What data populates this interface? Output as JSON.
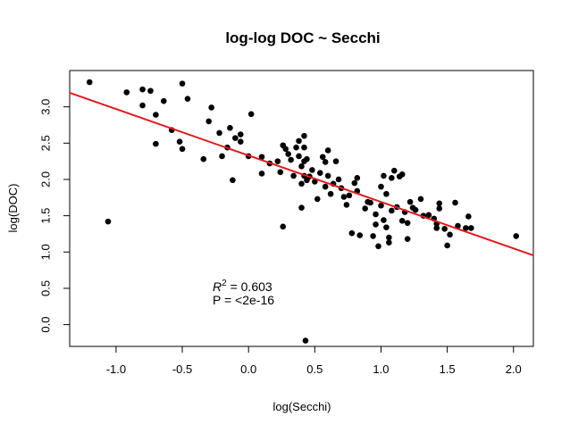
{
  "chart_data": {
    "type": "scatter",
    "title": "log-log DOC ~ Secchi",
    "xlabel": "log(Secchi)",
    "ylabel": "log(DOC)",
    "xlim": [
      -1.35,
      2.15
    ],
    "ylim": [
      -0.3,
      3.5
    ],
    "x_ticks": [
      -1.0,
      -0.5,
      0.0,
      0.5,
      1.0,
      1.5,
      2.0
    ],
    "x_tick_labels": [
      "-1.0",
      "-0.5",
      "0.0",
      "0.5",
      "1.0",
      "1.5",
      "2.0"
    ],
    "y_ticks": [
      0.0,
      0.5,
      1.0,
      1.5,
      2.0,
      2.5,
      3.0
    ],
    "y_tick_labels": [
      "0.0",
      "0.5",
      "1.0",
      "1.5",
      "2.0",
      "2.5",
      "3.0"
    ],
    "grid": false,
    "point_color": "#000000",
    "line_color": "#e31a1c",
    "regression_line": {
      "intercept": 2.33,
      "slope": -0.64
    },
    "annotation": {
      "r2_prefix": "R",
      "r2_sup": "2",
      "r2_value": " = 0.603",
      "p_value": "P = <2e-16"
    },
    "points": [
      {
        "x": -1.2,
        "y": 3.34
      },
      {
        "x": -1.06,
        "y": 1.42
      },
      {
        "x": -0.92,
        "y": 3.2
      },
      {
        "x": -0.8,
        "y": 3.24
      },
      {
        "x": -0.8,
        "y": 3.02
      },
      {
        "x": -0.74,
        "y": 3.22
      },
      {
        "x": -0.7,
        "y": 2.89
      },
      {
        "x": -0.7,
        "y": 2.49
      },
      {
        "x": -0.64,
        "y": 3.08
      },
      {
        "x": -0.58,
        "y": 2.68
      },
      {
        "x": -0.52,
        "y": 2.52
      },
      {
        "x": -0.5,
        "y": 3.32
      },
      {
        "x": -0.5,
        "y": 2.42
      },
      {
        "x": -0.46,
        "y": 3.11
      },
      {
        "x": -0.34,
        "y": 2.28
      },
      {
        "x": -0.3,
        "y": 2.8
      },
      {
        "x": -0.28,
        "y": 2.99
      },
      {
        "x": -0.22,
        "y": 2.64
      },
      {
        "x": -0.2,
        "y": 2.32
      },
      {
        "x": -0.16,
        "y": 2.44
      },
      {
        "x": -0.14,
        "y": 2.71
      },
      {
        "x": -0.12,
        "y": 1.99
      },
      {
        "x": -0.1,
        "y": 2.57
      },
      {
        "x": -0.06,
        "y": 2.52
      },
      {
        "x": -0.06,
        "y": 2.62
      },
      {
        "x": 0.0,
        "y": 2.32
      },
      {
        "x": 0.02,
        "y": 2.9
      },
      {
        "x": 0.1,
        "y": 2.08
      },
      {
        "x": 0.1,
        "y": 2.31
      },
      {
        "x": 0.16,
        "y": 2.22
      },
      {
        "x": 0.22,
        "y": 2.25
      },
      {
        "x": 0.24,
        "y": 2.1
      },
      {
        "x": 0.26,
        "y": 2.47
      },
      {
        "x": 0.28,
        "y": 2.42
      },
      {
        "x": 0.26,
        "y": 1.35
      },
      {
        "x": 0.3,
        "y": 2.35
      },
      {
        "x": 0.32,
        "y": 2.27
      },
      {
        "x": 0.34,
        "y": 2.05
      },
      {
        "x": 0.36,
        "y": 2.44
      },
      {
        "x": 0.38,
        "y": 2.53
      },
      {
        "x": 0.38,
        "y": 2.32
      },
      {
        "x": 0.4,
        "y": 2.18
      },
      {
        "x": 0.4,
        "y": 1.94
      },
      {
        "x": 0.42,
        "y": 2.6
      },
      {
        "x": 0.42,
        "y": 2.44
      },
      {
        "x": 0.42,
        "y": 2.25
      },
      {
        "x": 0.42,
        "y": 2.05
      },
      {
        "x": 0.44,
        "y": 1.99
      },
      {
        "x": 0.4,
        "y": 1.61
      },
      {
        "x": 0.44,
        "y": 2.28
      },
      {
        "x": 0.46,
        "y": 2.04
      },
      {
        "x": 0.48,
        "y": 2.13
      },
      {
        "x": 0.5,
        "y": 1.97
      },
      {
        "x": 0.52,
        "y": 1.73
      },
      {
        "x": 0.54,
        "y": 2.09
      },
      {
        "x": 0.56,
        "y": 2.31
      },
      {
        "x": 0.58,
        "y": 2.24
      },
      {
        "x": 0.58,
        "y": 1.9
      },
      {
        "x": 0.6,
        "y": 2.4
      },
      {
        "x": 0.6,
        "y": 2.05
      },
      {
        "x": 0.62,
        "y": 1.8
      },
      {
        "x": 0.64,
        "y": 1.94
      },
      {
        "x": 0.66,
        "y": 2.25
      },
      {
        "x": 0.68,
        "y": 2.0
      },
      {
        "x": 0.7,
        "y": 1.88
      },
      {
        "x": 0.72,
        "y": 1.76
      },
      {
        "x": 0.74,
        "y": 1.65
      },
      {
        "x": 0.76,
        "y": 1.78
      },
      {
        "x": 0.78,
        "y": 1.26
      },
      {
        "x": 0.8,
        "y": 1.95
      },
      {
        "x": 0.82,
        "y": 2.02
      },
      {
        "x": 0.82,
        "y": 1.84
      },
      {
        "x": 0.84,
        "y": 1.23
      },
      {
        "x": 0.88,
        "y": 1.6
      },
      {
        "x": 0.9,
        "y": 1.69
      },
      {
        "x": 0.92,
        "y": 1.68
      },
      {
        "x": 0.94,
        "y": 1.22
      },
      {
        "x": 0.96,
        "y": 1.38
      },
      {
        "x": 0.96,
        "y": 1.52
      },
      {
        "x": 0.98,
        "y": 1.08
      },
      {
        "x": 1.0,
        "y": 1.9
      },
      {
        "x": 1.0,
        "y": 1.64
      },
      {
        "x": 1.02,
        "y": 1.44
      },
      {
        "x": 1.02,
        "y": 2.05
      },
      {
        "x": 1.04,
        "y": 1.8
      },
      {
        "x": 1.04,
        "y": 1.34
      },
      {
        "x": 1.06,
        "y": 1.2
      },
      {
        "x": 1.06,
        "y": 1.13
      },
      {
        "x": 1.08,
        "y": 2.02
      },
      {
        "x": 1.08,
        "y": 1.57
      },
      {
        "x": 1.1,
        "y": 2.12
      },
      {
        "x": 1.12,
        "y": 1.62
      },
      {
        "x": 1.14,
        "y": 2.04
      },
      {
        "x": 1.16,
        "y": 2.07
      },
      {
        "x": 1.16,
        "y": 1.43
      },
      {
        "x": 1.18,
        "y": 1.55
      },
      {
        "x": 1.2,
        "y": 1.18
      },
      {
        "x": 1.2,
        "y": 1.4
      },
      {
        "x": 1.22,
        "y": 1.69
      },
      {
        "x": 1.24,
        "y": 1.61
      },
      {
        "x": 1.26,
        "y": 1.58
      },
      {
        "x": 1.3,
        "y": 1.73
      },
      {
        "x": 1.32,
        "y": 1.5
      },
      {
        "x": 1.36,
        "y": 1.51
      },
      {
        "x": 1.4,
        "y": 1.46
      },
      {
        "x": 1.42,
        "y": 1.39
      },
      {
        "x": 1.42,
        "y": 1.33
      },
      {
        "x": 1.44,
        "y": 1.6
      },
      {
        "x": 1.44,
        "y": 1.67
      },
      {
        "x": 1.48,
        "y": 1.32
      },
      {
        "x": 1.5,
        "y": 1.09
      },
      {
        "x": 1.52,
        "y": 1.24
      },
      {
        "x": 1.56,
        "y": 1.68
      },
      {
        "x": 1.58,
        "y": 1.36
      },
      {
        "x": 1.64,
        "y": 1.33
      },
      {
        "x": 1.66,
        "y": 1.49
      },
      {
        "x": 1.68,
        "y": 1.33
      },
      {
        "x": 2.02,
        "y": 1.22
      },
      {
        "x": 0.43,
        "y": -0.22
      }
    ]
  }
}
